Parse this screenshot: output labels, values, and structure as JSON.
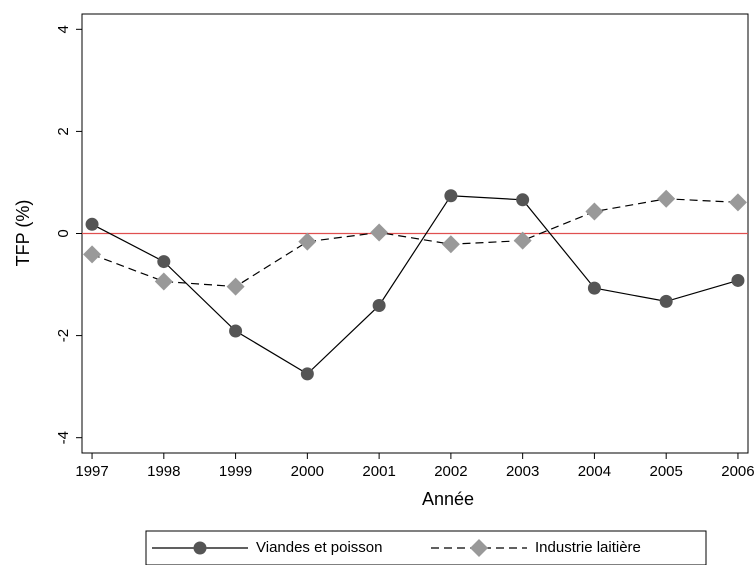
{
  "chart_data": {
    "type": "line",
    "x": [
      1997,
      1998,
      1999,
      2000,
      2001,
      2002,
      2003,
      2004,
      2005,
      2006
    ],
    "series": [
      {
        "name": "Viandes et poisson",
        "color": "#555555",
        "marker": "circle",
        "dash": "solid",
        "values": [
          0.18,
          -0.55,
          -1.91,
          -2.75,
          -1.41,
          0.74,
          0.66,
          -1.07,
          -1.33,
          -0.92
        ]
      },
      {
        "name": "Industrie laitière",
        "color": "#999999",
        "marker": "diamond",
        "dash": "dashed",
        "values": [
          -0.41,
          -0.94,
          -1.04,
          -0.16,
          0.02,
          -0.21,
          -0.14,
          0.43,
          0.68,
          0.61
        ]
      }
    ],
    "xlabel": "Année",
    "ylabel": "TFP (%)",
    "xlim": [
      1996.86,
      2006.14
    ],
    "ylim": [
      -4.3,
      4.3
    ],
    "xticks": [
      1997,
      1998,
      1999,
      2000,
      2001,
      2002,
      2003,
      2004,
      2005,
      2006
    ],
    "yticks": [
      -4,
      -2,
      0,
      2,
      4
    ],
    "reference_line": {
      "value": 0,
      "color": "#e05050"
    },
    "legend": "bottom"
  }
}
